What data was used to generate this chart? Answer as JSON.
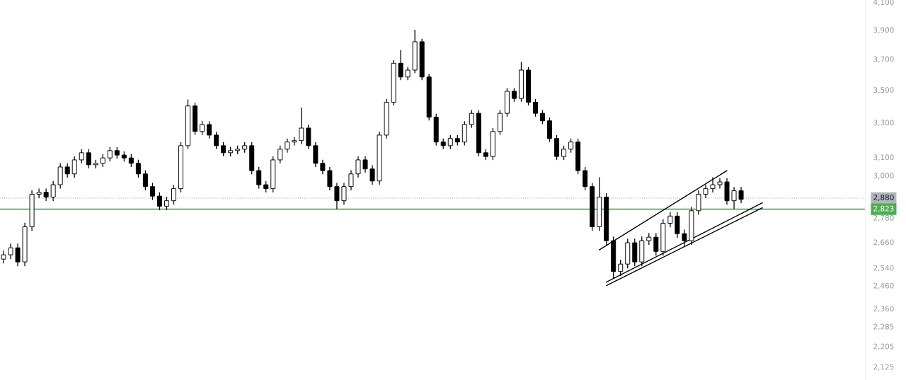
{
  "chart_data": {
    "type": "candlestick",
    "log": "y",
    "grid": false,
    "legend": false,
    "tick_labels": "y",
    "color": "#000000",
    "categories": [
      null,
      null,
      null,
      null,
      null,
      null,
      null,
      null,
      null,
      null,
      null,
      null,
      null,
      null,
      null,
      null,
      null,
      null,
      null,
      null,
      null,
      null,
      null,
      null,
      null,
      null,
      null,
      null,
      null,
      null,
      null,
      null,
      null,
      null,
      null,
      null,
      null,
      null,
      null,
      null,
      null,
      null,
      null,
      null,
      null,
      null,
      null,
      null,
      null,
      null,
      null,
      null,
      null,
      null,
      null,
      null,
      null,
      null,
      null,
      null,
      null,
      null,
      null,
      null,
      null,
      null,
      null,
      null,
      null,
      null,
      null,
      null,
      null,
      null,
      null,
      null,
      null,
      null,
      null,
      null,
      null,
      null,
      null,
      null,
      null,
      null,
      null,
      null,
      null,
      null,
      null,
      null,
      null,
      null,
      null,
      null,
      null,
      null,
      null,
      null,
      null,
      null,
      null,
      null,
      null,
      null,
      null,
      null,
      null,
      null,
      null,
      null,
      null,
      null,
      null,
      null,
      null,
      null,
      null,
      null,
      null,
      null
    ],
    "ohlc": [
      [
        2580,
        2620,
        2560,
        2600
      ],
      [
        2600,
        2653,
        2580,
        2633
      ],
      [
        2633,
        2653,
        2547,
        2567
      ],
      [
        2567,
        2755,
        2547,
        2735
      ],
      [
        2735,
        2920,
        2715,
        2900
      ],
      [
        2900,
        2930,
        2880,
        2910
      ],
      [
        2910,
        2930,
        2865,
        2885
      ],
      [
        2885,
        2970,
        2865,
        2950
      ],
      [
        2950,
        3066,
        2930,
        3046
      ],
      [
        3046,
        3066,
        2988,
        3008
      ],
      [
        3008,
        3105,
        2988,
        3085
      ],
      [
        3085,
        3145,
        3065,
        3125
      ],
      [
        3125,
        3145,
        3038,
        3058
      ],
      [
        3058,
        3086,
        3038,
        3066
      ],
      [
        3066,
        3116,
        3046,
        3096
      ],
      [
        3096,
        3157,
        3076,
        3137
      ],
      [
        3137,
        3157,
        3092,
        3112
      ],
      [
        3112,
        3132,
        3076,
        3096
      ],
      [
        3096,
        3116,
        3046,
        3066
      ],
      [
        3066,
        3086,
        2988,
        3008
      ],
      [
        3008,
        3028,
        2920,
        2940
      ],
      [
        2940,
        2960,
        2870,
        2890
      ],
      [
        2890,
        2910,
        2818,
        2838
      ],
      [
        2838,
        2886,
        2818,
        2866
      ],
      [
        2866,
        2949,
        2846,
        2929
      ],
      [
        2929,
        3185,
        2909,
        3165
      ],
      [
        3165,
        3440,
        3145,
        3400
      ],
      [
        3400,
        3420,
        3227,
        3247
      ],
      [
        3247,
        3308,
        3227,
        3288
      ],
      [
        3288,
        3308,
        3206,
        3226
      ],
      [
        3226,
        3246,
        3145,
        3165
      ],
      [
        3165,
        3185,
        3105,
        3125
      ],
      [
        3125,
        3157,
        3105,
        3137
      ],
      [
        3137,
        3165,
        3117,
        3145
      ],
      [
        3145,
        3185,
        3125,
        3165
      ],
      [
        3165,
        3185,
        3006,
        3026
      ],
      [
        3026,
        3046,
        2930,
        2950
      ],
      [
        2950,
        2970,
        2909,
        2929
      ],
      [
        2929,
        3105,
        2909,
        3085
      ],
      [
        3085,
        3165,
        3065,
        3145
      ],
      [
        3145,
        3206,
        3125,
        3186
      ],
      [
        3186,
        3214,
        3166,
        3194
      ],
      [
        3194,
        3390,
        3174,
        3267
      ],
      [
        3267,
        3287,
        3145,
        3165
      ],
      [
        3165,
        3185,
        3046,
        3066
      ],
      [
        3066,
        3086,
        3006,
        3026
      ],
      [
        3026,
        3046,
        2920,
        2940
      ],
      [
        2940,
        2960,
        2823,
        2866
      ],
      [
        2866,
        2960,
        2846,
        2940
      ],
      [
        2940,
        3028,
        2920,
        3008
      ],
      [
        3008,
        3105,
        2988,
        3085
      ],
      [
        3085,
        3105,
        3015,
        3035
      ],
      [
        3035,
        3055,
        2950,
        2970
      ],
      [
        2970,
        3246,
        2950,
        3226
      ],
      [
        3226,
        3443,
        3206,
        3423
      ],
      [
        3423,
        3692,
        3403,
        3672
      ],
      [
        3672,
        3760,
        3562,
        3582
      ],
      [
        3582,
        3647,
        3562,
        3627
      ],
      [
        3627,
        3900,
        3607,
        3817
      ],
      [
        3817,
        3837,
        3562,
        3582
      ],
      [
        3582,
        3602,
        3312,
        3332
      ],
      [
        3332,
        3352,
        3166,
        3186
      ],
      [
        3186,
        3206,
        3145,
        3165
      ],
      [
        3165,
        3226,
        3145,
        3206
      ],
      [
        3206,
        3226,
        3166,
        3186
      ],
      [
        3186,
        3308,
        3166,
        3288
      ],
      [
        3288,
        3375,
        3268,
        3355
      ],
      [
        3355,
        3375,
        3105,
        3125
      ],
      [
        3125,
        3145,
        3084,
        3104
      ],
      [
        3104,
        3267,
        3084,
        3247
      ],
      [
        3247,
        3375,
        3227,
        3355
      ],
      [
        3355,
        3511,
        3335,
        3491
      ],
      [
        3491,
        3511,
        3426,
        3446
      ],
      [
        3446,
        3680,
        3426,
        3627
      ],
      [
        3627,
        3647,
        3403,
        3423
      ],
      [
        3423,
        3443,
        3335,
        3355
      ],
      [
        3355,
        3375,
        3290,
        3310
      ],
      [
        3310,
        3330,
        3186,
        3206
      ],
      [
        3206,
        3226,
        3084,
        3104
      ],
      [
        3104,
        3165,
        3084,
        3145
      ],
      [
        3145,
        3206,
        3125,
        3186
      ],
      [
        3186,
        3206,
        3006,
        3026
      ],
      [
        3026,
        3046,
        2920,
        2940
      ],
      [
        2940,
        2960,
        2715,
        2735
      ],
      [
        2735,
        2990,
        2715,
        2885
      ],
      [
        2885,
        2905,
        2647,
        2667
      ],
      [
        2667,
        2687,
        2490,
        2523
      ],
      [
        2523,
        2577,
        2503,
        2557
      ],
      [
        2557,
        2677,
        2537,
        2657
      ],
      [
        2657,
        2677,
        2547,
        2567
      ],
      [
        2567,
        2687,
        2547,
        2667
      ],
      [
        2667,
        2704,
        2647,
        2684
      ],
      [
        2684,
        2704,
        2596,
        2616
      ],
      [
        2616,
        2772,
        2596,
        2752
      ],
      [
        2752,
        2808,
        2732,
        2788
      ],
      [
        2788,
        2808,
        2681,
        2701
      ],
      [
        2701,
        2721,
        2640,
        2667
      ],
      [
        2667,
        2835,
        2647,
        2815
      ],
      [
        2815,
        2920,
        2795,
        2900
      ],
      [
        2900,
        2949,
        2880,
        2929
      ],
      [
        2929,
        2990,
        2909,
        2950
      ],
      [
        2950,
        2985,
        2930,
        2965
      ],
      [
        2965,
        2985,
        2846,
        2866
      ],
      [
        2866,
        2938,
        2823,
        2918
      ],
      [
        2918,
        2938,
        2853,
        2873
      ],
      null,
      null,
      null,
      null,
      null,
      null,
      null,
      null,
      null,
      null,
      null,
      null,
      null,
      null,
      null,
      null,
      null
    ],
    "series": [
      {
        "type": "line",
        "color": "#000000",
        "values": [
          null,
          null,
          null,
          null,
          null,
          null,
          null,
          null,
          null,
          null,
          null,
          null,
          null,
          null,
          null,
          null,
          null,
          null,
          null,
          null,
          null,
          null,
          null,
          null,
          null,
          null,
          null,
          null,
          null,
          null,
          null,
          null,
          null,
          null,
          null,
          null,
          null,
          null,
          null,
          null,
          null,
          null,
          null,
          null,
          null,
          null,
          null,
          null,
          null,
          null,
          null,
          null,
          null,
          null,
          null,
          null,
          null,
          null,
          null,
          null,
          null,
          null,
          null,
          null,
          null,
          null,
          null,
          null,
          null,
          null,
          null,
          null,
          null,
          null,
          null,
          null,
          null,
          null,
          null,
          null,
          null,
          null,
          null,
          null,
          2623,
          null,
          null,
          null,
          null,
          null,
          null,
          null,
          null,
          null,
          null,
          null,
          null,
          null,
          null,
          null,
          null,
          null,
          3026,
          null,
          null,
          null,
          null,
          null,
          null,
          null,
          null,
          null,
          null,
          null,
          null,
          null,
          null,
          null,
          null,
          null,
          null,
          null
        ]
      },
      {
        "type": "line",
        "color": "#000000",
        "values": [
          null,
          null,
          null,
          null,
          null,
          null,
          null,
          null,
          null,
          null,
          null,
          null,
          null,
          null,
          null,
          null,
          null,
          null,
          null,
          null,
          null,
          null,
          null,
          null,
          null,
          null,
          null,
          null,
          null,
          null,
          null,
          null,
          null,
          null,
          null,
          null,
          null,
          null,
          null,
          null,
          null,
          null,
          null,
          null,
          null,
          null,
          null,
          null,
          null,
          null,
          null,
          null,
          null,
          null,
          null,
          null,
          null,
          null,
          null,
          null,
          null,
          null,
          null,
          null,
          null,
          null,
          null,
          null,
          null,
          null,
          null,
          null,
          null,
          null,
          null,
          null,
          null,
          null,
          null,
          null,
          null,
          null,
          null,
          null,
          null,
          2475,
          null,
          null,
          null,
          null,
          null,
          null,
          null,
          null,
          null,
          null,
          null,
          null,
          null,
          null,
          null,
          null,
          null,
          null,
          null,
          null,
          null,
          2855,
          null,
          null,
          null,
          null,
          null,
          null,
          null,
          null,
          null,
          null,
          null,
          null,
          null,
          null
        ]
      },
      {
        "type": "line",
        "color": "#000000",
        "values": [
          null,
          null,
          null,
          null,
          null,
          null,
          null,
          null,
          null,
          null,
          null,
          null,
          null,
          null,
          null,
          null,
          null,
          null,
          null,
          null,
          null,
          null,
          null,
          null,
          null,
          null,
          null,
          null,
          null,
          null,
          null,
          null,
          null,
          null,
          null,
          null,
          null,
          null,
          null,
          null,
          null,
          null,
          null,
          null,
          null,
          null,
          null,
          null,
          null,
          null,
          null,
          null,
          null,
          null,
          null,
          null,
          null,
          null,
          null,
          null,
          null,
          null,
          null,
          null,
          null,
          null,
          null,
          null,
          null,
          null,
          null,
          null,
          null,
          null,
          null,
          null,
          null,
          null,
          null,
          null,
          null,
          null,
          null,
          null,
          null,
          2460,
          null,
          null,
          null,
          null,
          null,
          null,
          null,
          null,
          null,
          null,
          null,
          null,
          null,
          null,
          null,
          null,
          null,
          null,
          null,
          null,
          null,
          2830,
          null,
          null,
          null,
          null,
          null,
          null,
          null,
          null,
          null,
          null,
          null,
          null,
          null,
          null
        ]
      }
    ],
    "ylim": [
      2075,
      4115
    ],
    "yticks": [
      {
        "value": 2125,
        "label": "2,125"
      },
      {
        "value": 2205,
        "label": "2,205"
      },
      {
        "value": 2285,
        "label": "2,285"
      },
      {
        "value": 2360,
        "label": "2,360"
      },
      {
        "value": 2460,
        "label": "2,460"
      },
      {
        "value": 2540,
        "label": "2,540"
      },
      {
        "value": 2660,
        "label": "2,660"
      },
      {
        "value": 2780,
        "label": "2,780"
      },
      {
        "value": 3000,
        "label": "3,000"
      },
      {
        "value": 3100,
        "label": "3,100"
      },
      {
        "value": 3300,
        "label": "3,300"
      },
      {
        "value": 3500,
        "label": "3,500"
      },
      {
        "value": 3700,
        "label": "3,700"
      },
      {
        "value": 3900,
        "label": "3,900"
      },
      {
        "value": 4100,
        "label": "4,100"
      }
    ],
    "ref_lines": [
      {
        "axis": "y",
        "value": 2880,
        "label": "2,880",
        "color": "#b2b5be",
        "line_style": "dotted"
      },
      {
        "axis": "y",
        "value": 2823,
        "label": "2,823",
        "color": "#4caf50",
        "line_style": "solid"
      }
    ]
  }
}
